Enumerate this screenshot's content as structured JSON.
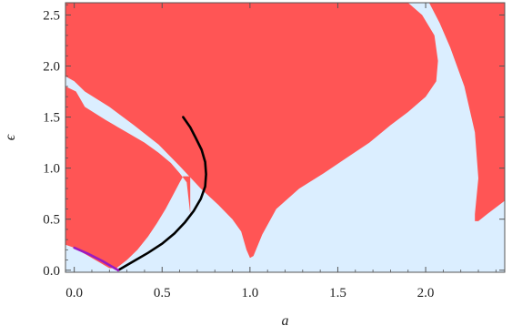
{
  "chart_data": {
    "type": "heatmap",
    "title": "",
    "xlabel": "a",
    "ylabel": "ϵ",
    "xlim": [
      -0.05,
      2.45
    ],
    "ylim": [
      -0.02,
      2.62
    ],
    "x_ticks": [
      "0.0",
      "0.5",
      "1.0",
      "1.5",
      "2.0"
    ],
    "y_ticks": [
      "0.0",
      "0.5",
      "1.0",
      "1.5",
      "2.0",
      "2.5"
    ],
    "grid": false,
    "background_region_color": "#dbeeff",
    "highlight_region_color": "#ff5555",
    "highlight_regions": [
      {
        "name": "left-lobe",
        "points": [
          [
            -0.05,
            0.25
          ],
          [
            0,
            0.22
          ],
          [
            0.12,
            0.1
          ],
          [
            0.2,
            0.02
          ],
          [
            0.24,
            0.02
          ],
          [
            0.3,
            0.1
          ],
          [
            0.36,
            0.2
          ],
          [
            0.42,
            0.33
          ],
          [
            0.47,
            0.46
          ],
          [
            0.52,
            0.6
          ],
          [
            0.56,
            0.73
          ],
          [
            0.6,
            0.86
          ],
          [
            0.62,
            0.92
          ],
          [
            0.66,
            0.92
          ],
          [
            0.66,
            0.55
          ],
          [
            0.64,
            0.86
          ],
          [
            0.6,
            0.95
          ],
          [
            0.55,
            1.05
          ],
          [
            0.48,
            1.15
          ],
          [
            0.4,
            1.25
          ],
          [
            0.3,
            1.35
          ],
          [
            0.18,
            1.47
          ],
          [
            0.06,
            1.6
          ],
          [
            0.01,
            1.75
          ],
          [
            -0.05,
            1.8
          ]
        ]
      },
      {
        "name": "upper-left-wedge",
        "points": [
          [
            -0.05,
            2.62
          ],
          [
            1.9,
            2.62
          ],
          [
            1.98,
            2.5
          ],
          [
            2.05,
            2.3
          ],
          [
            2.07,
            2.05
          ],
          [
            2.06,
            1.85
          ],
          [
            2.0,
            1.7
          ],
          [
            1.9,
            1.55
          ],
          [
            1.8,
            1.42
          ],
          [
            1.68,
            1.25
          ],
          [
            1.55,
            1.1
          ],
          [
            1.42,
            0.95
          ],
          [
            1.28,
            0.8
          ],
          [
            1.15,
            0.6
          ],
          [
            1.07,
            0.35
          ],
          [
            1.02,
            0.14
          ],
          [
            1.0,
            0.12
          ],
          [
            0.98,
            0.2
          ],
          [
            0.95,
            0.38
          ],
          [
            0.9,
            0.5
          ],
          [
            0.82,
            0.64
          ],
          [
            0.72,
            0.8
          ],
          [
            0.6,
            1.02
          ],
          [
            0.48,
            1.23
          ],
          [
            0.34,
            1.42
          ],
          [
            0.2,
            1.6
          ],
          [
            0.06,
            1.75
          ],
          [
            0,
            1.85
          ],
          [
            -0.05,
            1.9
          ]
        ]
      },
      {
        "name": "right-band",
        "points": [
          [
            2.02,
            2.62
          ],
          [
            2.45,
            2.62
          ],
          [
            2.45,
            0.68
          ],
          [
            2.35,
            0.55
          ],
          [
            2.3,
            0.48
          ],
          [
            2.28,
            0.48
          ],
          [
            2.28,
            0.55
          ],
          [
            2.3,
            0.9
          ],
          [
            2.28,
            1.35
          ],
          [
            2.22,
            1.8
          ],
          [
            2.14,
            2.18
          ],
          [
            2.08,
            2.42
          ]
        ]
      }
    ],
    "series": [
      {
        "type": "line",
        "color": "#000000",
        "x": [
          0.25,
          0.29,
          0.35,
          0.42,
          0.5,
          0.57,
          0.63,
          0.68,
          0.72,
          0.745,
          0.75,
          0.745,
          0.725,
          0.69,
          0.66,
          0.62
        ],
        "y": [
          0.0,
          0.04,
          0.1,
          0.17,
          0.26,
          0.36,
          0.47,
          0.58,
          0.7,
          0.82,
          0.94,
          1.06,
          1.18,
          1.3,
          1.4,
          1.5
        ]
      },
      {
        "type": "line",
        "color": "#9a1ac0",
        "x": [
          0.0,
          0.08,
          0.16,
          0.25
        ],
        "y": [
          0.22,
          0.16,
          0.09,
          0.0
        ]
      }
    ]
  }
}
